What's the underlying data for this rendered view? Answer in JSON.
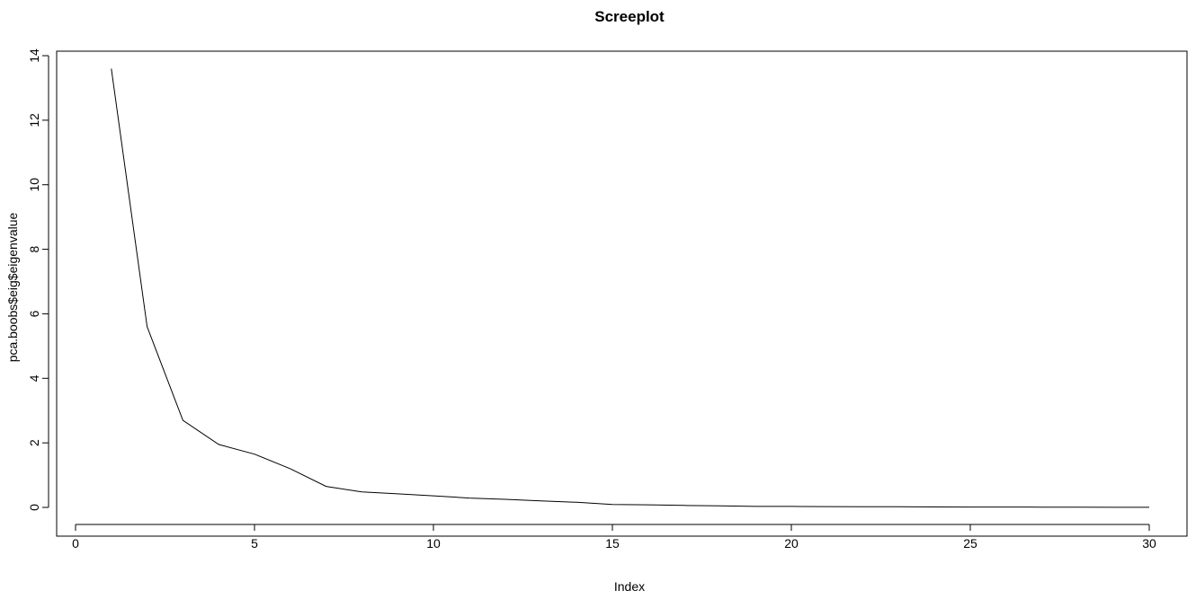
{
  "chart_data": {
    "type": "line",
    "title": "Screeplot",
    "xlabel": "Index",
    "ylabel": "pca.boobs$eig$eigenvalue",
    "xlim": [
      0,
      30
    ],
    "ylim": [
      0,
      14
    ],
    "xticks": [
      0,
      5,
      10,
      15,
      20,
      25,
      30
    ],
    "yticks": [
      0,
      2,
      4,
      6,
      8,
      10,
      12,
      14
    ],
    "grid": false,
    "series": [
      {
        "name": "eigenvalue",
        "x": [
          1,
          2,
          3,
          4,
          5,
          6,
          7,
          8,
          9,
          10,
          11,
          12,
          13,
          14,
          15,
          16,
          17,
          18,
          19,
          20,
          21,
          22,
          23,
          24,
          25,
          26,
          27,
          28,
          29,
          30
        ],
        "values": [
          13.6,
          5.6,
          2.7,
          1.95,
          1.65,
          1.2,
          0.65,
          0.48,
          0.42,
          0.36,
          0.29,
          0.25,
          0.2,
          0.16,
          0.09,
          0.08,
          0.06,
          0.05,
          0.03,
          0.03,
          0.025,
          0.02,
          0.02,
          0.015,
          0.01,
          0.01,
          0.008,
          0.006,
          0.004,
          0.003
        ]
      }
    ]
  }
}
